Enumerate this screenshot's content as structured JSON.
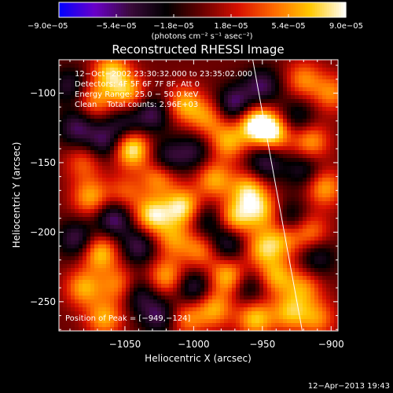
{
  "chart_data": {
    "type": "heatmap",
    "title": "Reconstructed RHESSI Image",
    "xlabel": "Heliocentric X (arcsec)",
    "ylabel": "Heliocentric Y (arcsec)",
    "xlim": [
      -1098,
      -895
    ],
    "ylim": [
      -271,
      -76
    ],
    "x_ticks": [
      -1050,
      -1000,
      -950,
      -900
    ],
    "x_tick_labels": [
      "−1050",
      "−1000",
      "−950",
      "−900"
    ],
    "y_ticks": [
      -100,
      -150,
      -200,
      -250
    ],
    "y_tick_labels": [
      "−100",
      "−150",
      "−200",
      "−250"
    ],
    "colorbar": {
      "min": -9e-05,
      "max": 9e-05,
      "ticks": [
        -9e-05,
        -5.4e-05,
        -1.8e-05,
        1.8e-05,
        5.4e-05,
        9e-05
      ],
      "tick_labels": [
        "−9.0e−05",
        "−5.4e−05",
        "−1.8e−05",
        "1.8e−05",
        "5.4e−05",
        "9.0e−05"
      ],
      "units_label": "(photons cm⁻² s⁻¹ asec⁻²)",
      "colors": [
        "#0000ff",
        "#6a00c8",
        "#3a0a3a",
        "#000000",
        "#6a0000",
        "#d81000",
        "#ff6a00",
        "#ffc800",
        "#ffffff"
      ]
    },
    "annotations": [
      "12−Oct−2002 23:30:32.000 to 23:35:02.000",
      "Detectors: 4F 5F 6F 7F 8F, Att 0",
      "Energy Range: 25.0 − 50.0 keV",
      "Clean    Total counts: 2.96E+03"
    ],
    "peak_label": "Position of Peak = [−949,−124]",
    "peak_position": [
      -949,
      -124
    ],
    "limb_line": [
      [
        -957,
        -76
      ],
      [
        -921,
        -271
      ]
    ],
    "timestamp": "12−Apr−2013 19:43",
    "blobs": [
      {
        "x": -1060,
        "y": -85,
        "v": 7e-05
      },
      {
        "x": -1048,
        "y": -100,
        "v": 6e-05
      },
      {
        "x": -1030,
        "y": -115,
        "v": -5e-05
      },
      {
        "x": -1050,
        "y": -122,
        "v": -4e-05
      },
      {
        "x": -1007,
        "y": -108,
        "v": 6e-05
      },
      {
        "x": -990,
        "y": -118,
        "v": 5e-05
      },
      {
        "x": -970,
        "y": -108,
        "v": -6e-05
      },
      {
        "x": -950,
        "y": -95,
        "v": -5e-05
      },
      {
        "x": -975,
        "y": -135,
        "v": 6e-05
      },
      {
        "x": -955,
        "y": -122,
        "v": 9e-05
      },
      {
        "x": -942,
        "y": -128,
        "v": 8e-05
      },
      {
        "x": -925,
        "y": -118,
        "v": -4e-05
      },
      {
        "x": -915,
        "y": -135,
        "v": 6e-05
      },
      {
        "x": -1045,
        "y": -140,
        "v": 9e-05
      },
      {
        "x": -1065,
        "y": -135,
        "v": -5e-05
      },
      {
        "x": -1085,
        "y": -125,
        "v": -5e-05
      },
      {
        "x": -1080,
        "y": -150,
        "v": 4e-05
      },
      {
        "x": -1020,
        "y": -148,
        "v": -5e-05
      },
      {
        "x": -1000,
        "y": -142,
        "v": -4e-05
      },
      {
        "x": -1025,
        "y": -160,
        "v": 6e-05
      },
      {
        "x": -985,
        "y": -162,
        "v": 6e-05
      },
      {
        "x": -960,
        "y": -170,
        "v": 7e-05
      },
      {
        "x": -948,
        "y": -150,
        "v": -5e-05
      },
      {
        "x": -920,
        "y": -155,
        "v": -4e-05
      },
      {
        "x": -905,
        "y": -168,
        "v": 6e-05
      },
      {
        "x": -1075,
        "y": -175,
        "v": 6e-05
      },
      {
        "x": -1050,
        "y": -172,
        "v": 4e-05
      },
      {
        "x": -1058,
        "y": -190,
        "v": -6e-05
      },
      {
        "x": -1030,
        "y": -188,
        "v": 8e-05
      },
      {
        "x": -1008,
        "y": -182,
        "v": 8e-05
      },
      {
        "x": -990,
        "y": -192,
        "v": -4e-05
      },
      {
        "x": -970,
        "y": -190,
        "v": 7e-05
      },
      {
        "x": -950,
        "y": -185,
        "v": 6e-05
      },
      {
        "x": -930,
        "y": -190,
        "v": -4e-05
      },
      {
        "x": -915,
        "y": -200,
        "v": 5e-05
      },
      {
        "x": -1085,
        "y": -205,
        "v": -5e-05
      },
      {
        "x": -1068,
        "y": -215,
        "v": 7e-05
      },
      {
        "x": -1040,
        "y": -210,
        "v": -5e-05
      },
      {
        "x": -1015,
        "y": -205,
        "v": 5e-05
      },
      {
        "x": -995,
        "y": -213,
        "v": 5e-05
      },
      {
        "x": -975,
        "y": -208,
        "v": -5e-05
      },
      {
        "x": -950,
        "y": -212,
        "v": 6e-05
      },
      {
        "x": -935,
        "y": -205,
        "v": 5e-05
      },
      {
        "x": -910,
        "y": -218,
        "v": -4e-05
      },
      {
        "x": -1080,
        "y": -240,
        "v": 6e-05
      },
      {
        "x": -1055,
        "y": -238,
        "v": 5e-05
      },
      {
        "x": -1040,
        "y": -245,
        "v": -4e-05
      },
      {
        "x": -1020,
        "y": -232,
        "v": 6e-05
      },
      {
        "x": -1000,
        "y": -240,
        "v": -5e-05
      },
      {
        "x": -975,
        "y": -232,
        "v": 7e-05
      },
      {
        "x": -960,
        "y": -240,
        "v": -4e-05
      },
      {
        "x": -940,
        "y": -232,
        "v": 6e-05
      },
      {
        "x": -920,
        "y": -240,
        "v": 5e-05
      },
      {
        "x": -1065,
        "y": -262,
        "v": 6e-05
      },
      {
        "x": -1025,
        "y": -260,
        "v": -5e-05
      },
      {
        "x": -1005,
        "y": -262,
        "v": 5e-05
      },
      {
        "x": -985,
        "y": -255,
        "v": 6e-05
      },
      {
        "x": -955,
        "y": -262,
        "v": 7e-05
      },
      {
        "x": -930,
        "y": -258,
        "v": 6e-05
      },
      {
        "x": -910,
        "y": -262,
        "v": 5e-05
      },
      {
        "x": -1090,
        "y": -95,
        "v": -4e-05
      },
      {
        "x": -1072,
        "y": -105,
        "v": 5e-05
      },
      {
        "x": -920,
        "y": -90,
        "v": 5e-05
      },
      {
        "x": -900,
        "y": -100,
        "v": 5e-05
      }
    ]
  }
}
